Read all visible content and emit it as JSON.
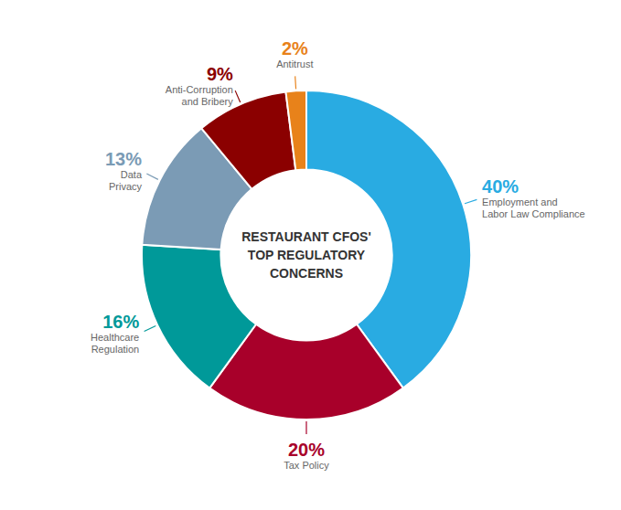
{
  "chart_data": {
    "type": "donut",
    "title": "RESTAURANT CFOS'\nTOP REGULATORY\nCONCERNS",
    "categories": [
      "Employment and\nLabor Law Compliance",
      "Tax Policy",
      "Healthcare\nRegulation",
      "Data\nPrivacy",
      "Anti-Corruption\nand Bribery",
      "Antitrust"
    ],
    "values": [
      40,
      20,
      16,
      13,
      9,
      2
    ],
    "value_labels": [
      "40%",
      "20%",
      "16%",
      "13%",
      "9%",
      "2%"
    ],
    "colors": [
      "#29ABE2",
      "#A8002A",
      "#009999",
      "#7B9BB5",
      "#8B0000",
      "#E8821A"
    ],
    "data_labels": true
  }
}
